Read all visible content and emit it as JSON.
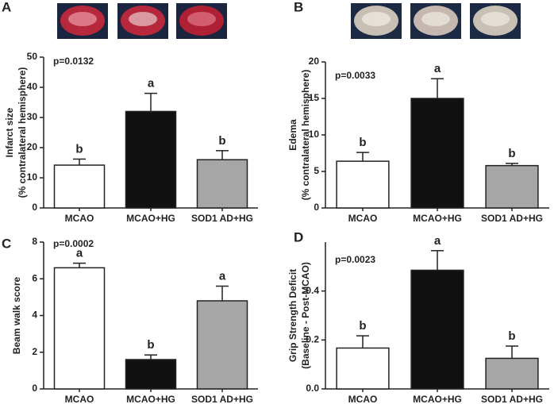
{
  "chart_data": [
    {
      "type": "bar",
      "panel": "A",
      "annotation": "p=0.0132",
      "ylabel": [
        "Infarct size",
        "(% contralateral hemisphere)"
      ],
      "categories": [
        "MCAO",
        "MCAO+HG",
        "SOD1 AD+HG"
      ],
      "values": [
        14.2,
        32,
        16
      ],
      "errors": [
        2,
        6,
        3
      ],
      "bar_labels": [
        "b",
        "a",
        "b"
      ],
      "colors": [
        "#ffffff",
        "#111111",
        "#a6a6a6"
      ],
      "ylim": [
        0,
        50
      ],
      "yticks": [
        0,
        10,
        20,
        30,
        40,
        50
      ]
    },
    {
      "type": "bar",
      "panel": "B",
      "annotation": "p=0.0033",
      "ylabel": [
        "Edema",
        "(% contralateral hemisphere)"
      ],
      "categories": [
        "MCAO",
        "MCAO+HG",
        "SOD1 AD+HG"
      ],
      "values": [
        6.4,
        15,
        5.8
      ],
      "errors": [
        1.2,
        2.7,
        0.3
      ],
      "bar_labels": [
        "b",
        "a",
        "b"
      ],
      "colors": [
        "#ffffff",
        "#111111",
        "#a6a6a6"
      ],
      "ylim": [
        0,
        20
      ],
      "yticks": [
        0,
        5,
        10,
        15,
        20
      ]
    },
    {
      "type": "bar",
      "panel": "C",
      "annotation": "p=0.0002",
      "ylabel": [
        "Beam walk score"
      ],
      "categories": [
        "MCAO",
        "MCAO+HG",
        "SOD1 AD+HG"
      ],
      "values": [
        6.6,
        1.6,
        4.8
      ],
      "errors": [
        0.25,
        0.25,
        0.8
      ],
      "bar_labels": [
        "a",
        "b",
        "a"
      ],
      "colors": [
        "#ffffff",
        "#111111",
        "#a6a6a6"
      ],
      "ylim": [
        0,
        8
      ],
      "yticks": [
        0,
        2,
        4,
        6,
        8
      ]
    },
    {
      "type": "bar",
      "panel": "D",
      "annotation": "p=0.0023",
      "ylabel": [
        "Grip Strength Deficit",
        "(Baseline - Post-MCAO)"
      ],
      "categories": [
        "MCAO",
        "MCAO+HG",
        "SOD1 AD+HG"
      ],
      "values": [
        0.167,
        0.485,
        0.125
      ],
      "errors": [
        0.05,
        0.08,
        0.05
      ],
      "bar_labels": [
        "b",
        "a",
        "b"
      ],
      "colors": [
        "#ffffff",
        "#111111",
        "#a6a6a6"
      ],
      "ylim": [
        0,
        0.6
      ],
      "yticks": [
        {
          "value": 0,
          "label": "0.0"
        },
        {
          "value": 0.2,
          "label": "0.2"
        },
        {
          "value": 0.4,
          "label": "0.4"
        }
      ]
    }
  ]
}
